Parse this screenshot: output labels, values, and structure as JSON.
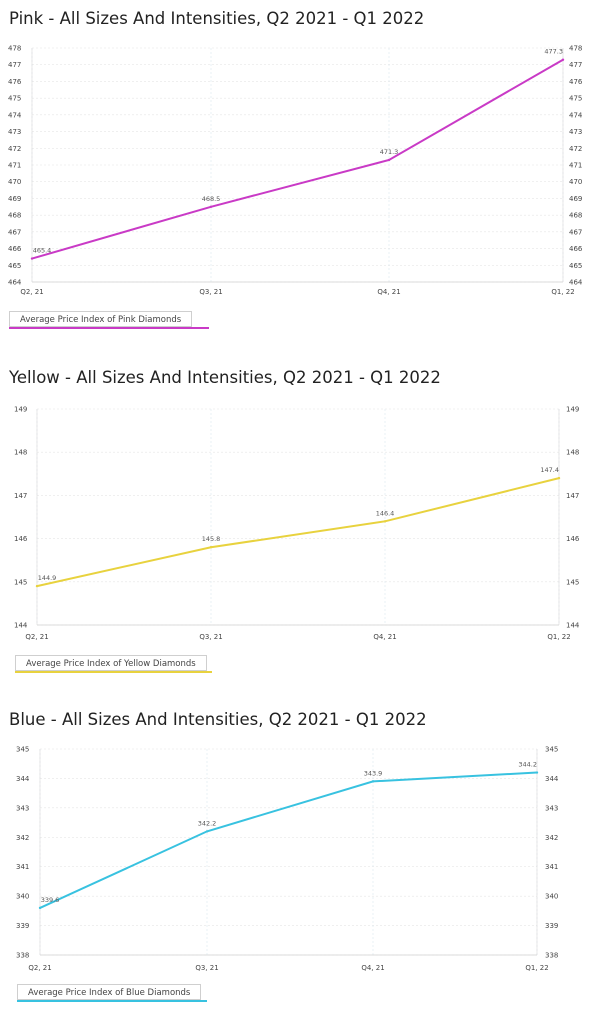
{
  "chart_data": [
    {
      "type": "line",
      "title": "Pink - All Sizes And Intensities, Q2 2021 - Q1 2022",
      "categories": [
        "Q2, 21",
        "Q3, 21",
        "Q4, 21",
        "Q1, 22"
      ],
      "series": [
        {
          "name": "Average Price Index of Pink Diamonds",
          "values": [
            465.4,
            468.5,
            471.3,
            477.3
          ],
          "value_labels": [
            "465.4",
            "468.5",
            "471.3",
            "477.3"
          ]
        }
      ],
      "ylim": [
        464,
        478
      ],
      "yticks": [
        464,
        465,
        466,
        467,
        468,
        469,
        470,
        471,
        472,
        473,
        474,
        475,
        476,
        477,
        478
      ],
      "color": "#c93ac6",
      "grid": true,
      "legend_placement": "bottom-left",
      "right_axis": true
    },
    {
      "type": "line",
      "title": "Yellow - All Sizes And Intensities, Q2 2021 - Q1 2022",
      "categories": [
        "Q2, 21",
        "Q3, 21",
        "Q4, 21",
        "Q1, 22"
      ],
      "series": [
        {
          "name": "Average Price Index of Yellow Diamonds",
          "values": [
            144.9,
            145.8,
            146.4,
            147.4
          ],
          "value_labels": [
            "144.9",
            "145.8",
            "146.4",
            "147.4"
          ]
        }
      ],
      "ylim": [
        144,
        149
      ],
      "yticks": [
        144,
        145,
        146,
        147,
        148,
        149
      ],
      "color": "#e8d23e",
      "grid": true,
      "legend_placement": "bottom-left",
      "right_axis": true
    },
    {
      "type": "line",
      "title": "Blue - All Sizes And Intensities, Q2 2021 - Q1 2022",
      "categories": [
        "Q2, 21",
        "Q3, 21",
        "Q4, 21",
        "Q1, 22"
      ],
      "series": [
        {
          "name": "Average Price Index of Blue Diamonds",
          "values": [
            339.6,
            342.2,
            343.9,
            344.2
          ],
          "value_labels": [
            "339.6",
            "342.2",
            "343.9",
            "344.2"
          ]
        }
      ],
      "ylim": [
        338,
        345
      ],
      "yticks": [
        338,
        339,
        340,
        341,
        342,
        343,
        344,
        345
      ],
      "color": "#38c2e0",
      "grid": true,
      "legend_placement": "bottom-left",
      "right_axis": true
    }
  ]
}
